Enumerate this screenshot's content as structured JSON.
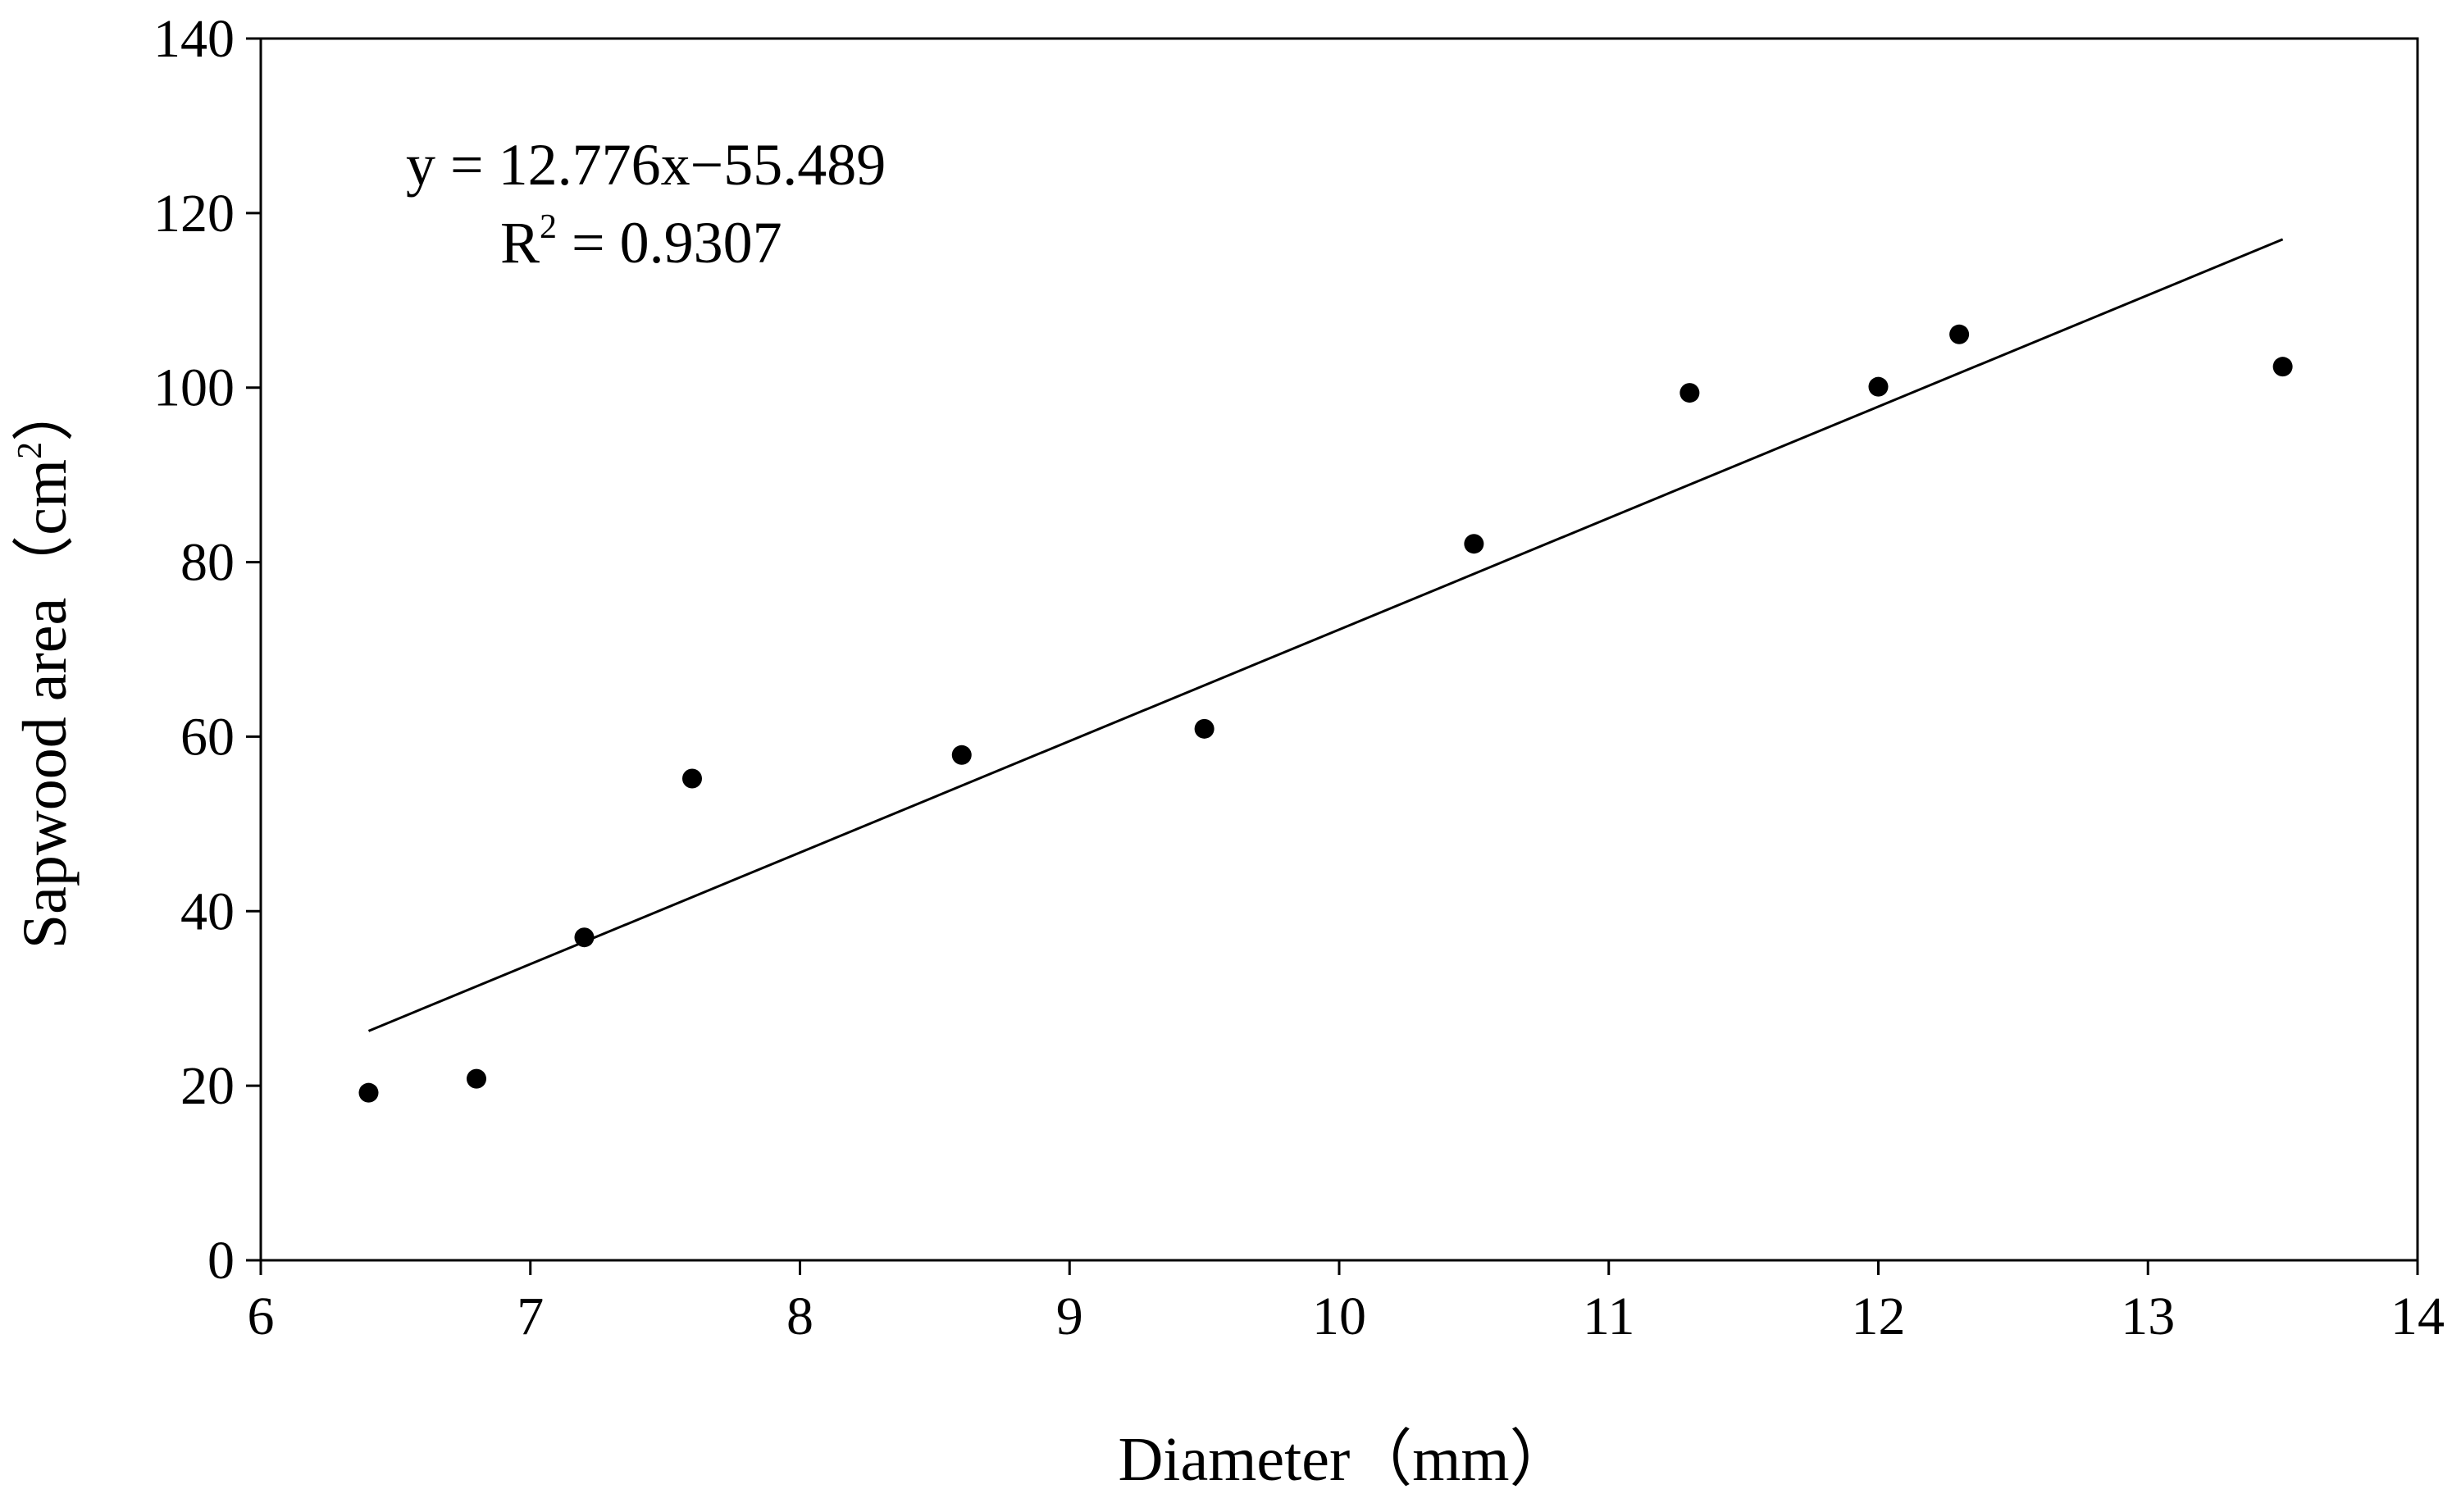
{
  "chart_data": {
    "type": "scatter",
    "title": "",
    "xlabel": "Diameter（mm）",
    "ylabel_main": "Sapwood area（cm",
    "ylabel_sup": "2",
    "ylabel_close": "）",
    "xlim": [
      6,
      14
    ],
    "ylim": [
      0,
      140
    ],
    "x_ticks": [
      6,
      7,
      8,
      9,
      10,
      11,
      12,
      13,
      14
    ],
    "y_ticks": [
      0,
      20,
      40,
      60,
      80,
      100,
      120,
      140
    ],
    "grid": false,
    "legend": "none",
    "points": [
      {
        "x": 6.4,
        "y": 19.2
      },
      {
        "x": 6.8,
        "y": 20.8
      },
      {
        "x": 7.2,
        "y": 37.0
      },
      {
        "x": 7.6,
        "y": 55.2
      },
      {
        "x": 8.6,
        "y": 57.9
      },
      {
        "x": 9.5,
        "y": 60.9
      },
      {
        "x": 10.5,
        "y": 82.1
      },
      {
        "x": 11.3,
        "y": 99.4
      },
      {
        "x": 12.0,
        "y": 100.1
      },
      {
        "x": 12.3,
        "y": 106.1
      },
      {
        "x": 13.5,
        "y": 102.4
      }
    ],
    "trendline": {
      "slope": 12.776,
      "intercept": -55.489,
      "x_range": [
        6.4,
        13.5
      ]
    },
    "equation": "y = 12.776x−55.489",
    "r2_label": "R",
    "r2_sup": "2",
    "r2_value": " = 0.9307",
    "marker_color": "#000000",
    "line_color": "#000000"
  }
}
